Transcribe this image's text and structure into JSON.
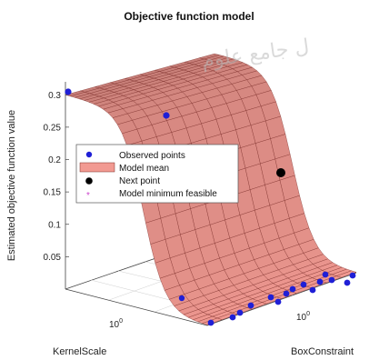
{
  "chart_data": {
    "type": "surface",
    "title": "Objective function model",
    "zlabel": "Estimated objective function value",
    "xlabel": "KernelScale",
    "ylabel": "BoxConstraint",
    "z_ticks": [
      "0.05",
      "0.1",
      "0.15",
      "0.2",
      "0.25",
      "0.3"
    ],
    "z_tick_values": [
      0.05,
      0.1,
      0.15,
      0.2,
      0.25,
      0.3
    ],
    "zlim": [
      0,
      0.32
    ],
    "x_tick_label": "10",
    "x_tick_exp": "0",
    "y_tick_label": "10",
    "y_tick_exp": "0",
    "legend": {
      "placement": "center-left",
      "items": [
        {
          "label": "Observed points",
          "marker": "blue-dot"
        },
        {
          "label": "Model mean",
          "marker": "red-patch"
        },
        {
          "label": "Next point",
          "marker": "black-dot"
        },
        {
          "label": "Model minimum feasible",
          "marker": "magenta-star"
        }
      ]
    },
    "colors": {
      "surface": "#f29a92",
      "mesh": "#7a2a25",
      "observed": "#1f1fd6",
      "next": "#000000",
      "minimum": "#cc44cc"
    }
  },
  "watermark": "ل جامع علوم"
}
